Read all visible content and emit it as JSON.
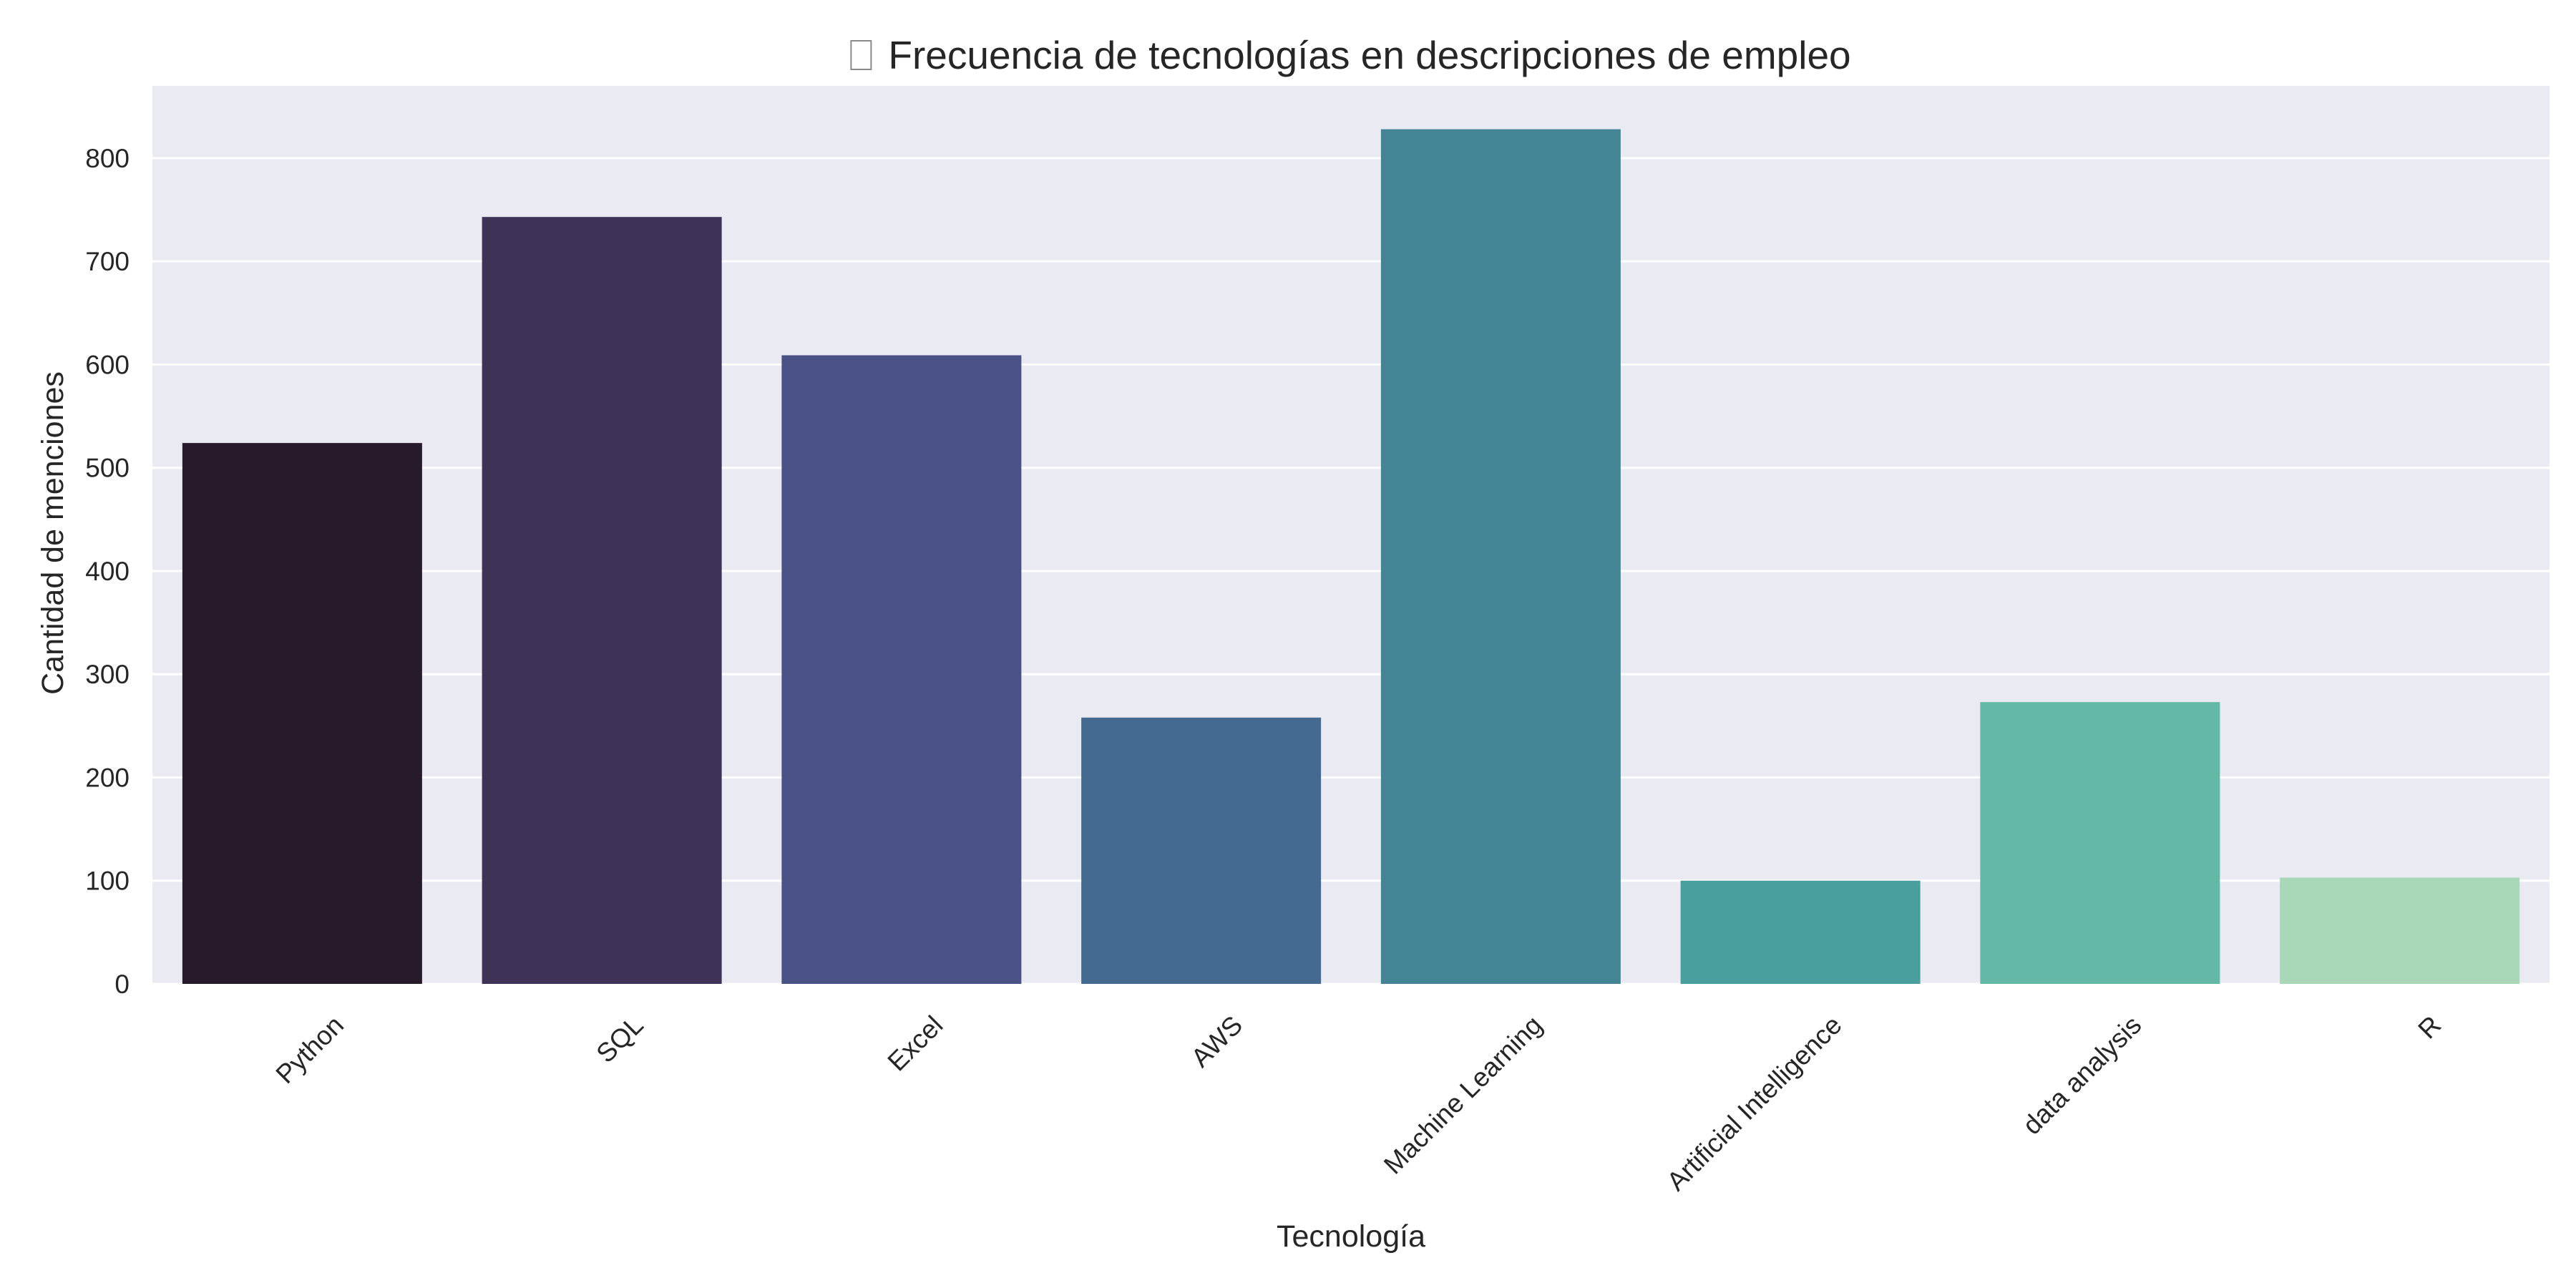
{
  "chart_data": {
    "type": "bar",
    "title": "Frecuencia de tecnologías en descripciones de empleo",
    "title_icon": "missing-glyph-icon",
    "xlabel": "Tecnología",
    "ylabel": "Cantidad de menciones",
    "categories": [
      "Python",
      "SQL",
      "Excel",
      "AWS",
      "Machine Learning",
      "Artificial Intelligence",
      "data analysis",
      "R"
    ],
    "values": [
      524,
      743,
      609,
      258,
      828,
      100,
      273,
      103
    ],
    "colors": [
      "#271b2b",
      "#3e3356",
      "#4a5185",
      "#446a91",
      "#438495",
      "#4a9e9e",
      "#63b9a5",
      "#a8d8b8"
    ],
    "ylim": [
      0,
      870
    ],
    "yticks": [
      0,
      100,
      200,
      300,
      400,
      500,
      600,
      700,
      800
    ],
    "grid": true,
    "background": "#eaeaf2",
    "gridline_color": "#ffffff",
    "legend": "none"
  }
}
